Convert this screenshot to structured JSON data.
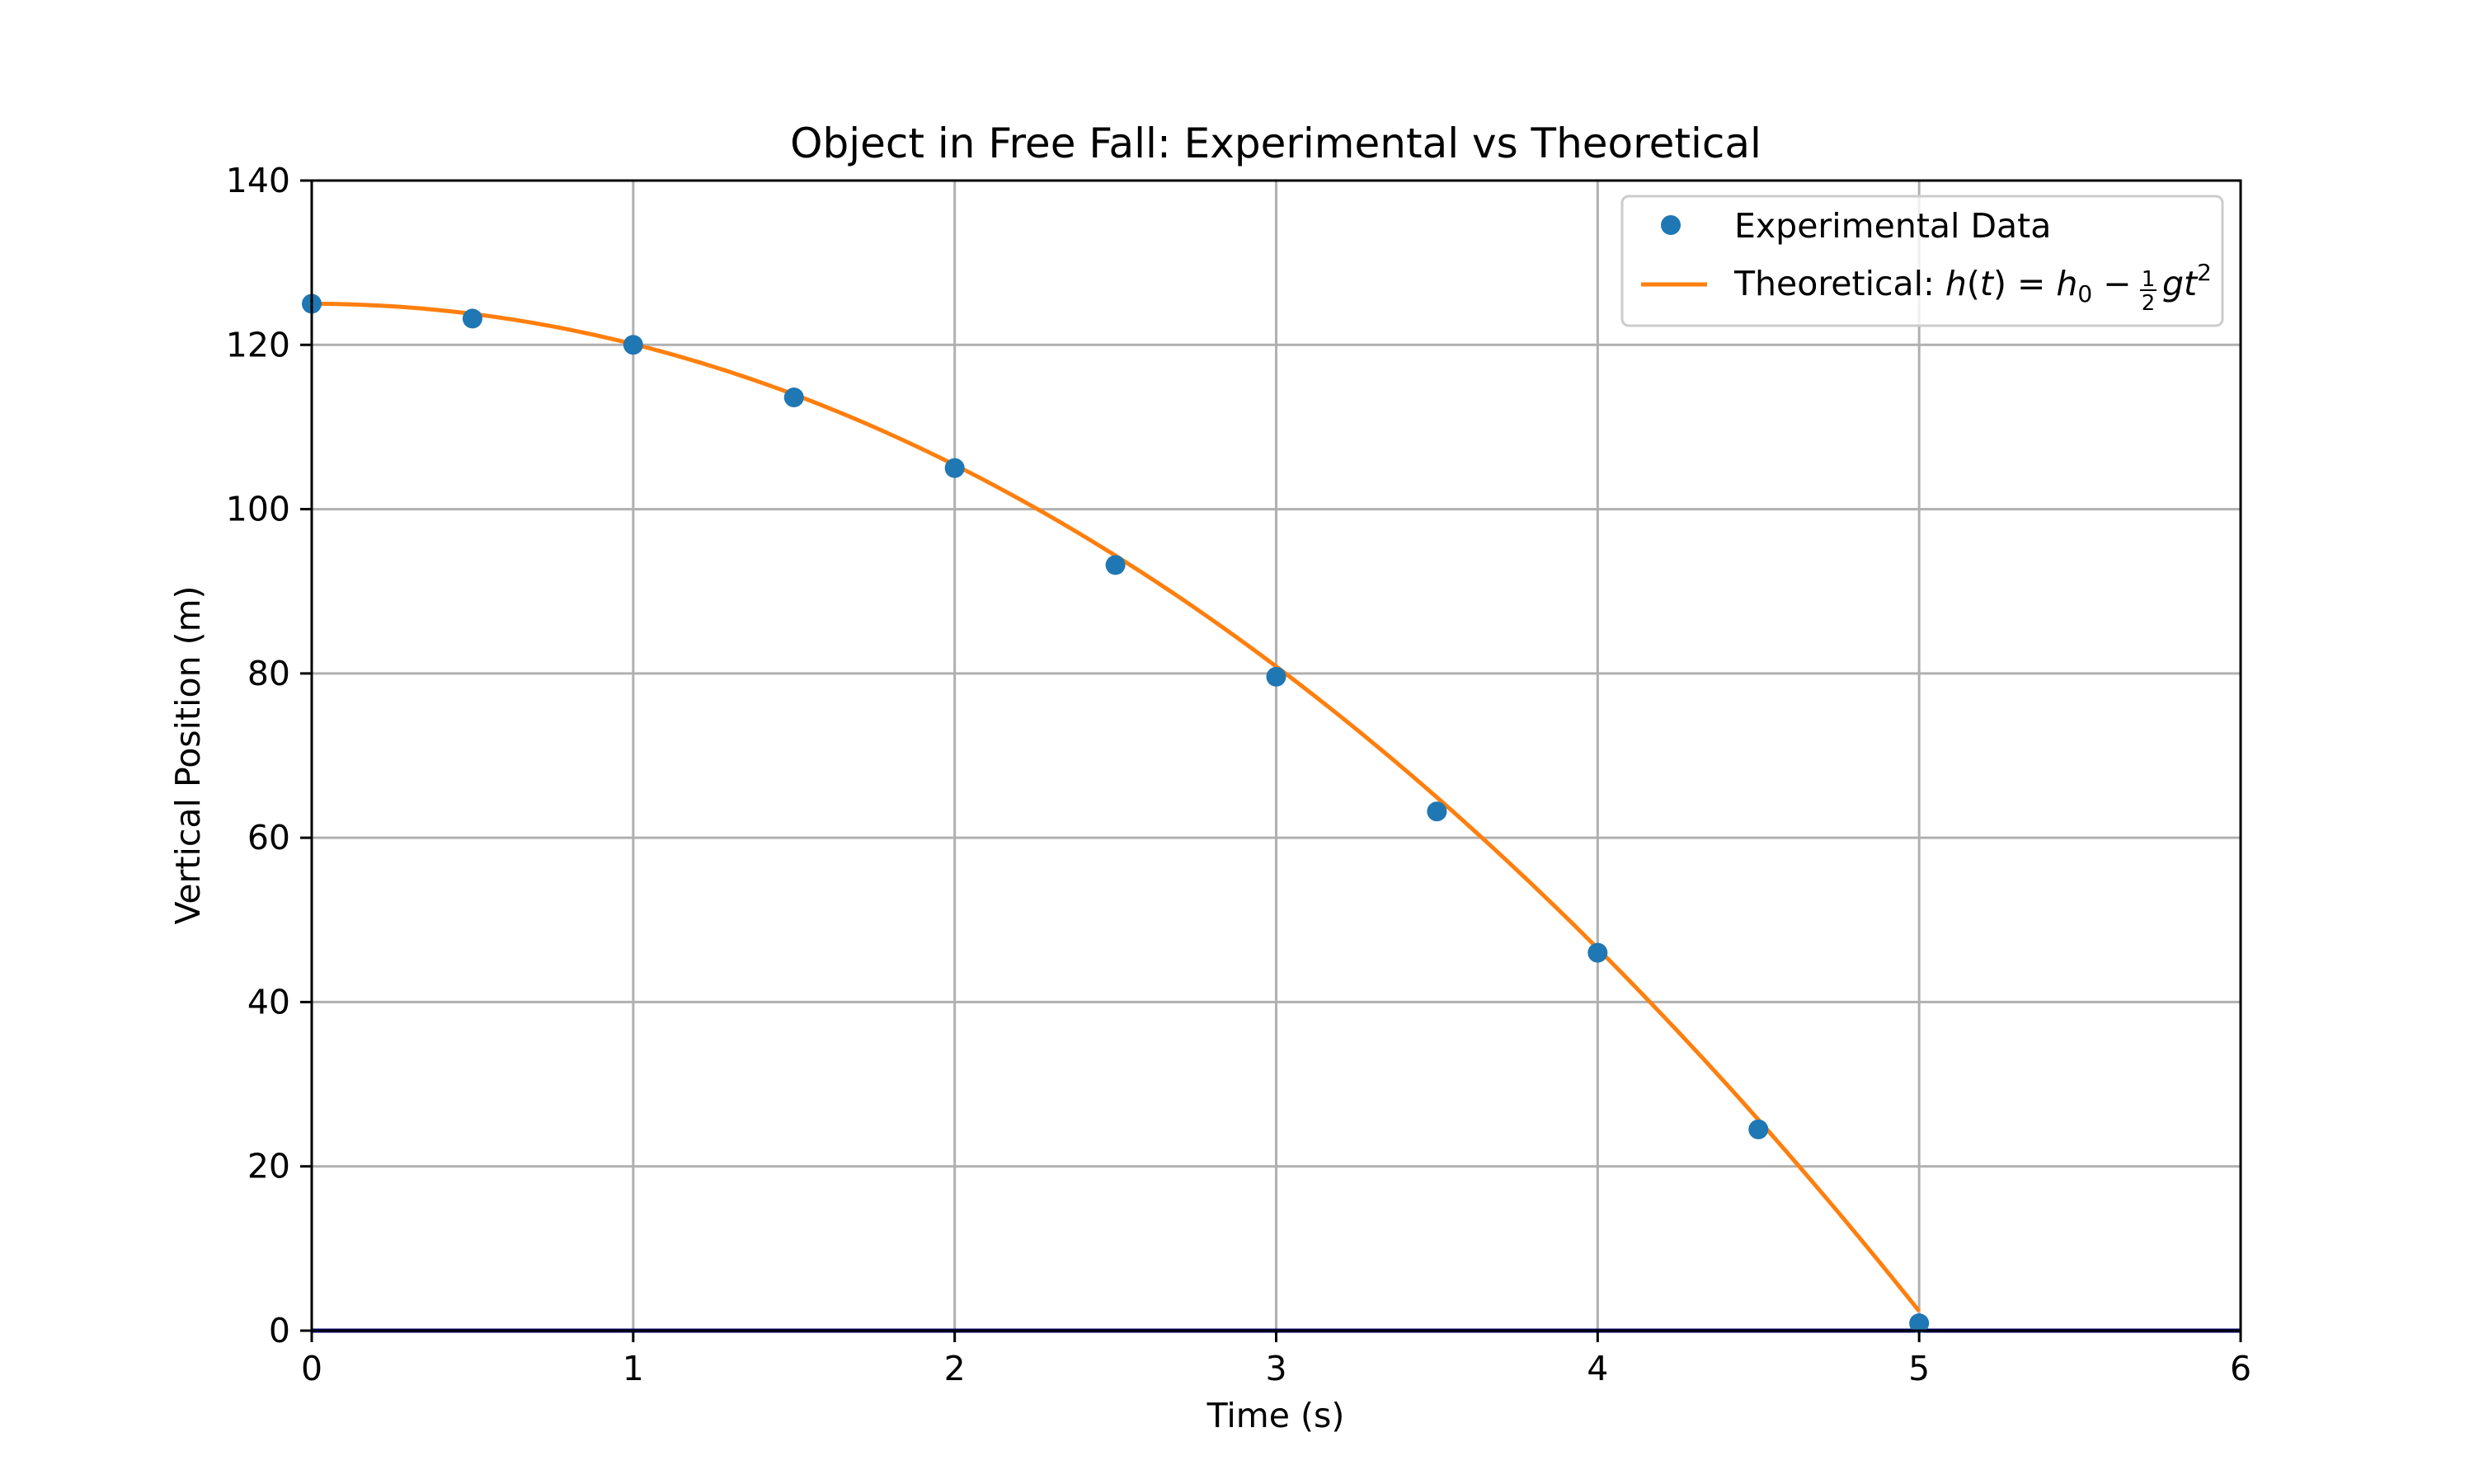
{
  "chart_data": {
    "type": "scatter",
    "title": "Object in Free Fall: Experimental vs Theoretical",
    "xlabel": "Time (s)",
    "ylabel": "Vertical Position (m)",
    "xlim": [
      0,
      6
    ],
    "ylim": [
      0,
      140
    ],
    "x_ticks": [
      0,
      1,
      2,
      3,
      4,
      5,
      6
    ],
    "y_ticks": [
      0,
      20,
      40,
      60,
      80,
      100,
      120,
      140
    ],
    "grid": true,
    "legend_position": "top-right",
    "baseline": {
      "y": 0,
      "color": "#000080"
    },
    "series": [
      {
        "name": "Experimental Data",
        "kind": "scatter",
        "color": "#1f77b4",
        "x": [
          0,
          0.5,
          1.0,
          1.5,
          2.0,
          2.5,
          3.0,
          3.5,
          4.0,
          4.5,
          5.0
        ],
        "y": [
          125.0,
          123.2,
          120.0,
          113.6,
          105.0,
          93.2,
          79.6,
          63.2,
          46.0,
          24.5,
          0.9
        ]
      },
      {
        "name": "Theoretical: h(t) = h₀ − ½gt²",
        "kind": "line",
        "color": "#ff7f0e",
        "model": {
          "h0": 125,
          "g": 9.81,
          "t_range": [
            0,
            5
          ]
        }
      }
    ],
    "legend": {
      "scatter_label": "Experimental Data",
      "line_label_text": "Theoretical: ",
      "line_label_math": {
        "h": "h",
        "t": "t",
        "h_sub": "0",
        "frac_num": "1",
        "frac_den": "2",
        "g": "g",
        "t2": "t",
        "exp": "2"
      }
    }
  }
}
